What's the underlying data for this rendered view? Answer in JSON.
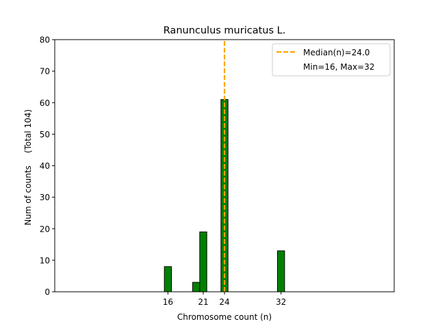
{
  "chart_data": {
    "type": "bar",
    "title": "Ranunculus muricatus L.",
    "xlabel": "Chromosome count (n)",
    "ylabel": "Num of counts",
    "ylabel_note": "(Total 104)",
    "xlim": [
      0,
      48
    ],
    "ylim": [
      0,
      80
    ],
    "x_ticks": [
      16,
      21,
      24,
      32
    ],
    "y_ticks": [
      0,
      10,
      20,
      30,
      40,
      50,
      60,
      70,
      80
    ],
    "bar_width": 1,
    "bars": [
      {
        "x": 16,
        "value": 8
      },
      {
        "x": 20,
        "value": 3
      },
      {
        "x": 21,
        "value": 19
      },
      {
        "x": 24,
        "value": 61
      },
      {
        "x": 32,
        "value": 13
      }
    ],
    "bar_color": "#008000",
    "bar_edge_color": "#000000",
    "median": 24.0,
    "median_color": "#ffa500",
    "legend": {
      "position": "upper right",
      "entries": [
        "Median(n)=24.0",
        "Min=16, Max=32"
      ]
    }
  }
}
